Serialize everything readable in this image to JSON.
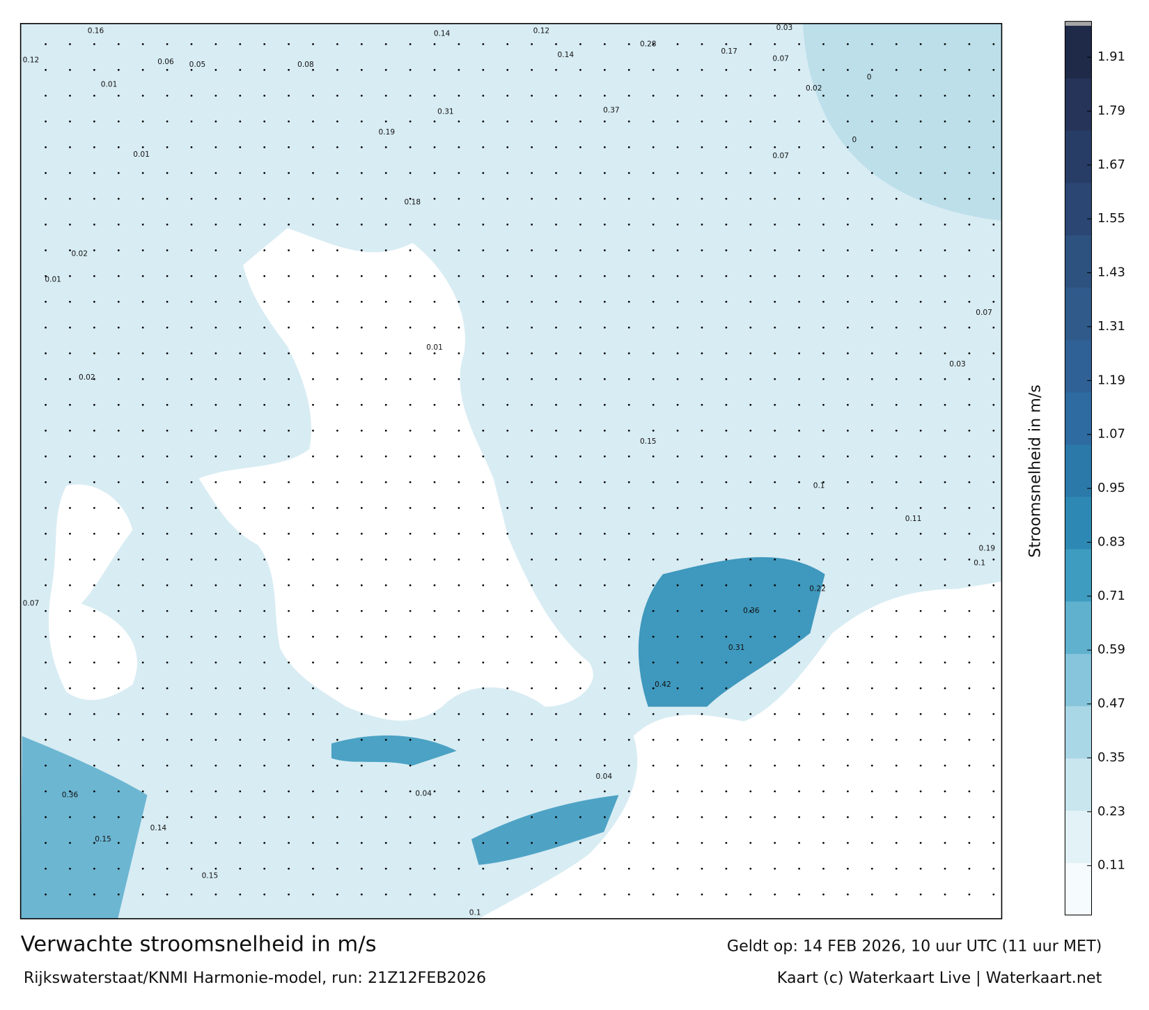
{
  "map": {
    "title": "Verwachte stroomsnelheid in m/s",
    "subtitle": "Rijkswaterstaat/KNMI Harmonie-model, run: 21Z12FEB2026",
    "valid_time": "Geldt op: 14 FEB 2026, 10 uur UTC (11 uur MET)",
    "credit": "Kaart (c) Waterkaart Live | Waterkaart.net",
    "colorbar": {
      "label": "Stroomsnelheid in m/s",
      "lim": [
        0,
        1.98
      ],
      "ticks": [
        0.11,
        0.23,
        0.35,
        0.47,
        0.59,
        0.71,
        0.83,
        0.95,
        1.07,
        1.19,
        1.31,
        1.43,
        1.55,
        1.67,
        1.79,
        1.91
      ],
      "colors": [
        "#f6fbfd",
        "#e3f2f7",
        "#c9e6ef",
        "#aad7e6",
        "#86c5db",
        "#5fb1ce",
        "#3e9cc0",
        "#2d89b3",
        "#2a79a8",
        "#2d6ba0",
        "#306196",
        "#2f5a8a",
        "#2e527f",
        "#2b4673",
        "#283d66",
        "#253458",
        "#1f2a48"
      ]
    },
    "labels": [
      0.16,
      0.12,
      0.06,
      0.05,
      0.01,
      0.08,
      0.14,
      0.12,
      0.14,
      0.28,
      0.17,
      0.07,
      0.03,
      0,
      0.02,
      0.37,
      0.31,
      0.19,
      0.01,
      0.02,
      0.01,
      0.02,
      0.01,
      0.15,
      0.1,
      0.11,
      0.19,
      0.36,
      0.31,
      0.42,
      0.22,
      0.1,
      0.07,
      0.36,
      0.15,
      0.14,
      0.04,
      0.04,
      0.1,
      0.15,
      0.03,
      0.07,
      0.18,
      0.07,
      0
    ]
  }
}
